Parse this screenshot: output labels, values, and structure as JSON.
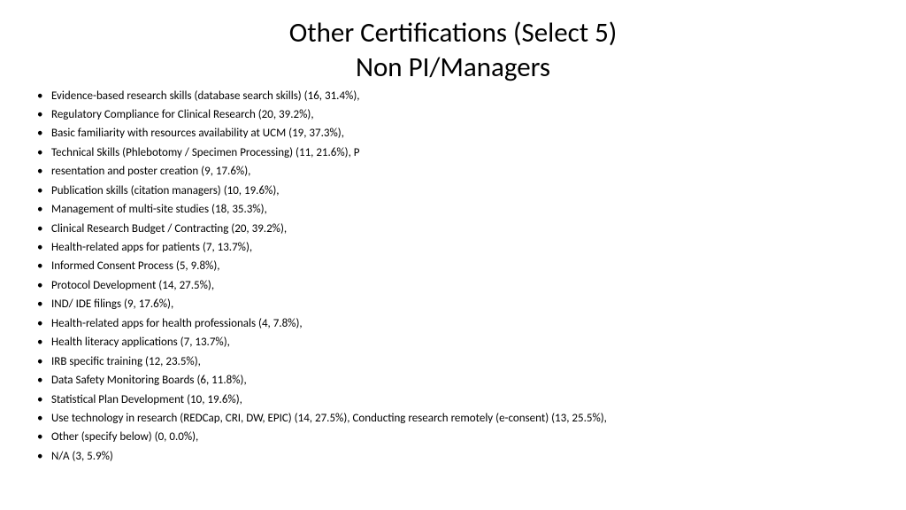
{
  "title_line1": "Other Certifications (Select 5)",
  "title_line2": "Non PI/Managers",
  "bullets": [
    "Evidence-based research skills (database search skills) (16, 31.4%),",
    "Regulatory Compliance for Clinical Research (20, 39.2%),",
    "Basic familiarity with resources availability at UCM (19, 37.3%),",
    "Technical Skills (Phlebotomy / Specimen Processing) (11, 21.6%), P",
    "resentation and poster creation (9, 17.6%),",
    "Publication skills (citation managers) (10, 19.6%),",
    "Management of multi-site studies (18, 35.3%),",
    "Clinical Research Budget / Contracting (20, 39.2%),",
    "Health-related apps for patients (7, 13.7%),",
    "Informed Consent Process (5, 9.8%),",
    "Protocol Development (14, 27.5%),",
    "IND/ IDE filings (9, 17.6%),",
    "Health-related apps for health professionals (4, 7.8%),",
    "Health literacy applications (7, 13.7%),",
    "IRB specific training (12, 23.5%),",
    "Data Safety Monitoring Boards (6, 11.8%),",
    "Statistical Plan Development (10, 19.6%),",
    "Use technology in research (REDCap, CRI, DW, EPIC) (14, 27.5%), Conducting research remotely (e-consent) (13, 25.5%),",
    "Other (specify below) (0, 0.0%),",
    "N/A (3, 5.9%)"
  ]
}
